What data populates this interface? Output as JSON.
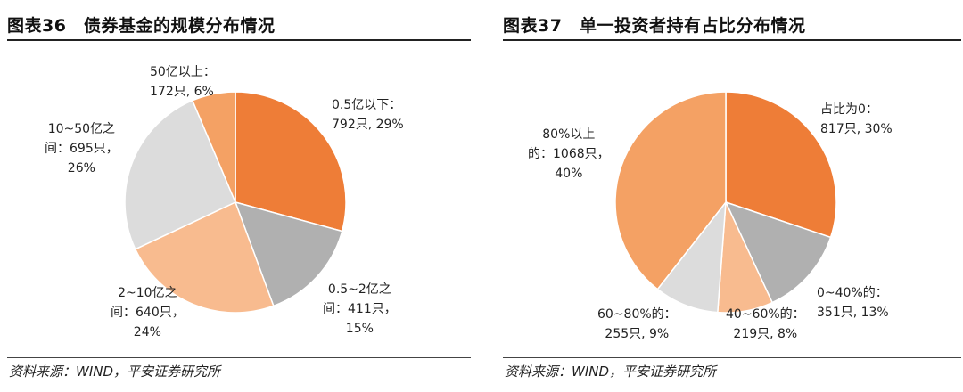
{
  "charts": [
    {
      "title": "图表36　债券基金的规模分布情况",
      "source": "资料来源：WIND，平安证券研究所",
      "chart_data": {
        "type": "pie",
        "slices": [
          {
            "name_lines": [
              "0.5亿以下："
            ],
            "value_line": "792只, 29%",
            "value": 792,
            "percent": 29,
            "color": "#ee7d37"
          },
          {
            "name_lines": [
              "0.5~2亿之",
              "间：411只，"
            ],
            "value_line": "15%",
            "value": 411,
            "percent": 15,
            "color": "#b0b0b0"
          },
          {
            "name_lines": [
              "2~10亿之",
              "间：640只，"
            ],
            "value_line": "24%",
            "value": 640,
            "percent": 24,
            "color": "#f8bb8f"
          },
          {
            "name_lines": [
              "10~50亿之",
              "间：695只，"
            ],
            "value_line": "26%",
            "value": 695,
            "percent": 26,
            "color": "#dcdcdc"
          },
          {
            "name_lines": [
              "50亿以上："
            ],
            "value_line": "172只, 6%",
            "value": 172,
            "percent": 6,
            "color": "#f4a164"
          }
        ]
      }
    },
    {
      "title": "图表37　单一投资者持有占比分布情况",
      "source": "资料来源：WIND，平安证券研究所",
      "chart_data": {
        "type": "pie",
        "slices": [
          {
            "name_lines": [
              "占比为0："
            ],
            "value_line": "817只, 30%",
            "value": 817,
            "percent": 30,
            "color": "#ee7d37"
          },
          {
            "name_lines": [
              "0~40%的："
            ],
            "value_line": "351只, 13%",
            "value": 351,
            "percent": 13,
            "color": "#b0b0b0"
          },
          {
            "name_lines": [
              "40~60%的："
            ],
            "value_line": "219只, 8%",
            "value": 219,
            "percent": 8,
            "color": "#f8bb8f"
          },
          {
            "name_lines": [
              "60~80%的："
            ],
            "value_line": "255只, 9%",
            "value": 255,
            "percent": 9,
            "color": "#dcdcdc"
          },
          {
            "name_lines": [
              "80%以上",
              "的：1068只，"
            ],
            "value_line": "40%",
            "value": 1068,
            "percent": 40,
            "color": "#f4a164"
          }
        ]
      }
    }
  ]
}
